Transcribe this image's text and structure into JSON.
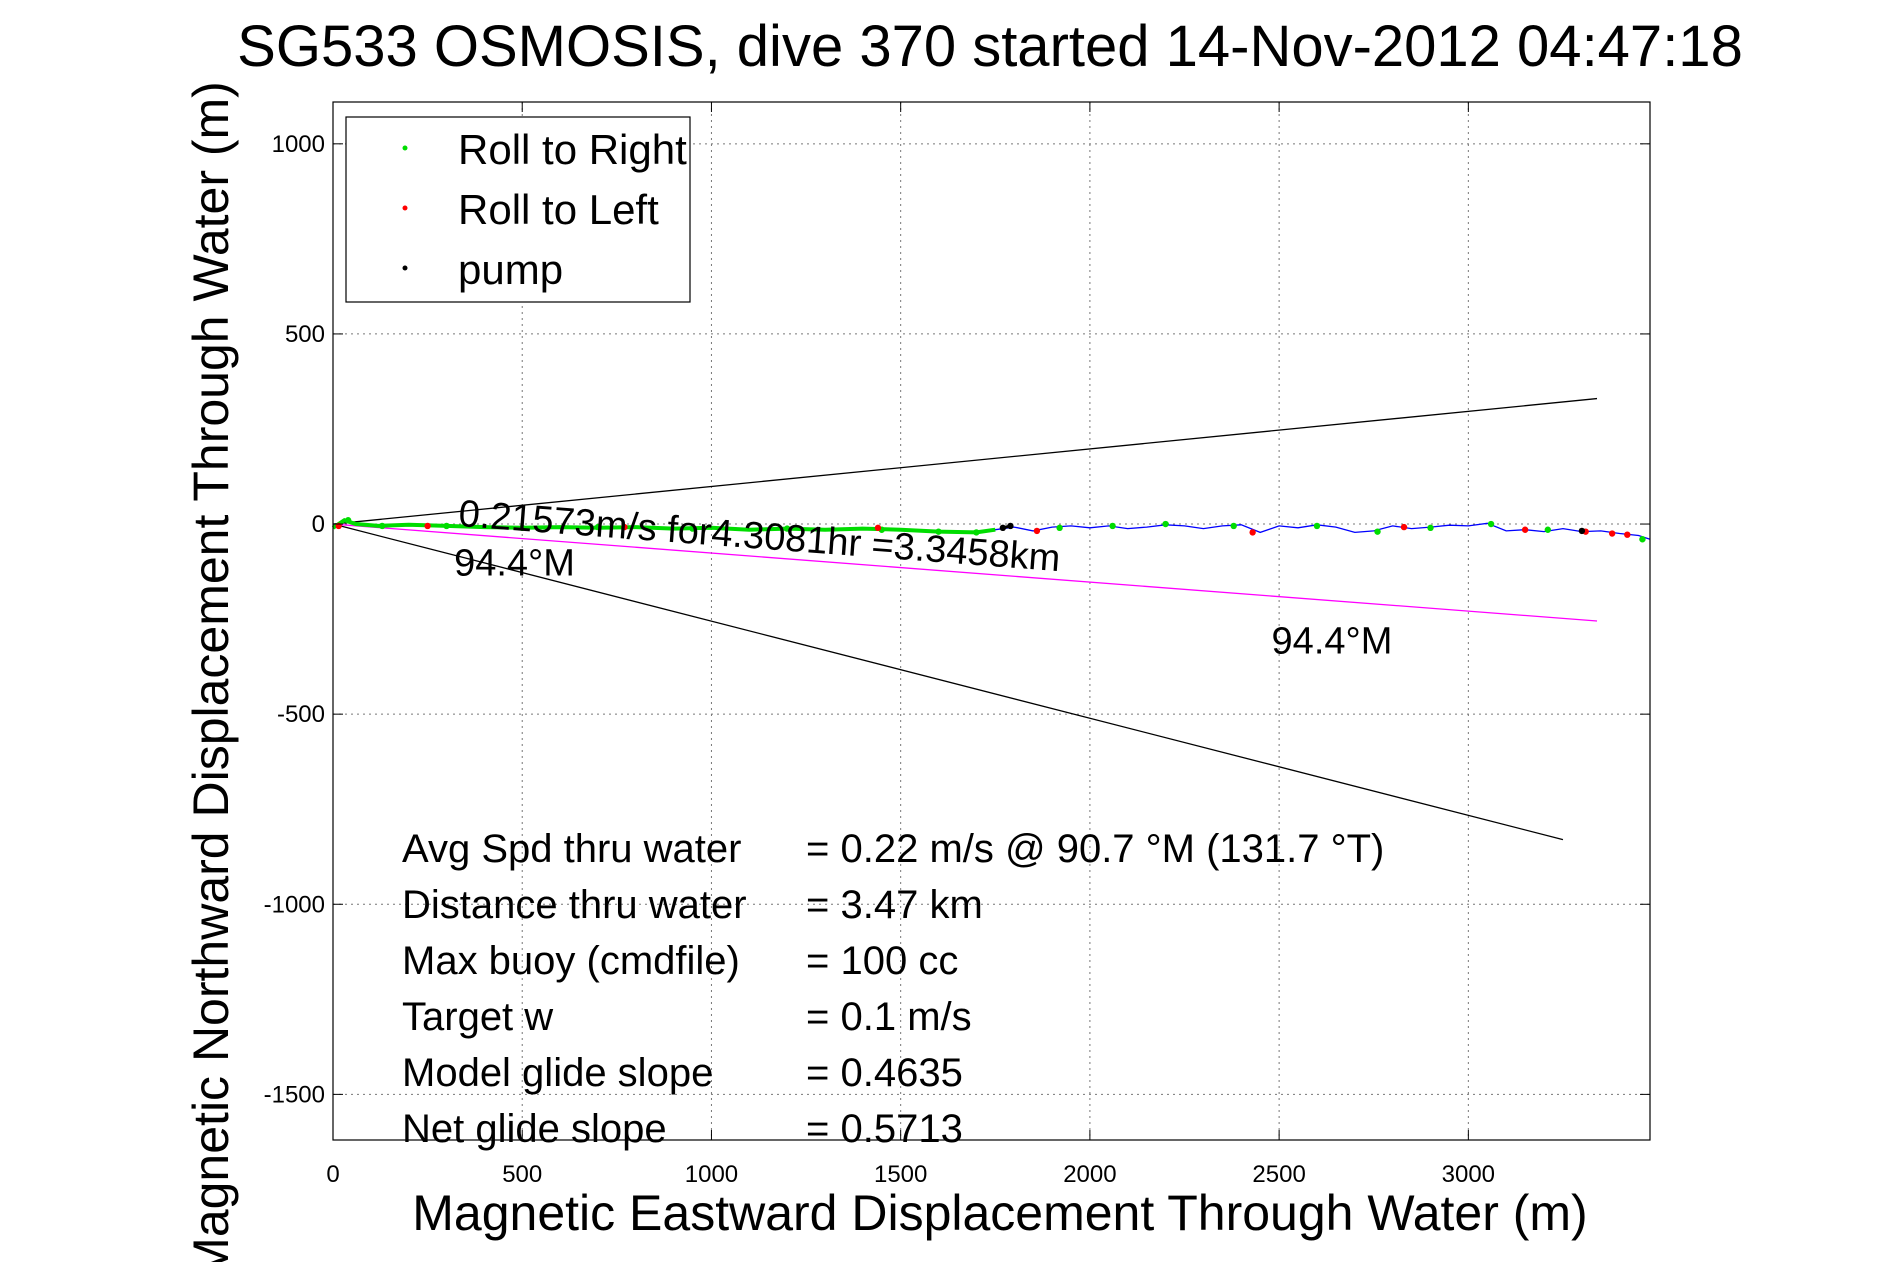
{
  "chart_data": {
    "type": "line",
    "title": "SG533 OSMOSIS, dive 370 started 14-Nov-2012 04:47:18",
    "xlabel": "Magnetic Eastward Displacement Through Water (m)",
    "ylabel": "Magnetic Northward Displacement Through Water (m)",
    "xlim": [
      0,
      3480
    ],
    "ylim": [
      -1620,
      1110
    ],
    "xticks": [
      0,
      500,
      1000,
      1500,
      2000,
      2500,
      3000
    ],
    "yticks": [
      1000,
      500,
      0,
      -500,
      -1000,
      -1500
    ],
    "grid": true,
    "legend_position": "top-left",
    "colors": {
      "roll_right": "#00dd00",
      "roll_left": "#ff0000",
      "pump": "#000000",
      "track": "#0000ff",
      "heading_line": "#ff00ff",
      "cone_lines": "#000000"
    },
    "legend": [
      {
        "label": "Roll to Right",
        "color": "#00dd00"
      },
      {
        "label": "Roll to Left",
        "color": "#ff0000"
      },
      {
        "label": "pump",
        "color": "#000000"
      }
    ],
    "series": [
      {
        "kind": "track",
        "x": [
          0,
          30,
          60,
          120,
          200,
          300,
          400,
          500,
          600,
          700,
          800,
          900,
          1000,
          1100,
          1200,
          1300,
          1400,
          1500,
          1600,
          1700,
          1750,
          1800,
          1850,
          1900,
          1950,
          2000,
          2050,
          2100,
          2150,
          2200,
          2250,
          2300,
          2350,
          2400,
          2450,
          2500,
          2550,
          2600,
          2650,
          2700,
          2750,
          2800,
          2850,
          2900,
          2950,
          3000,
          3050,
          3100,
          3150,
          3200,
          3250,
          3300,
          3350,
          3400,
          3450,
          3480
        ],
        "y": [
          -10,
          10,
          0,
          -5,
          -2,
          -5,
          -8,
          -10,
          -8,
          -10,
          -8,
          -12,
          -10,
          -15,
          -12,
          -15,
          -12,
          -15,
          -20,
          -22,
          -15,
          -8,
          -18,
          -8,
          -5,
          -10,
          -5,
          -12,
          -8,
          -2,
          -5,
          -12,
          -5,
          -2,
          -22,
          -5,
          -10,
          -2,
          -8,
          -22,
          -18,
          -5,
          -12,
          -8,
          -3,
          -5,
          2,
          -18,
          -15,
          -20,
          -12,
          -20,
          -18,
          -25,
          -30,
          -40
        ]
      }
    ],
    "markers": {
      "roll_right": {
        "x": [
          40,
          130,
          300,
          500,
          700,
          950,
          1200,
          1450,
          1600,
          1700,
          1920,
          2060,
          2200,
          2380,
          2600,
          2760,
          2900,
          3060,
          3210,
          3460
        ],
        "y": [
          10,
          -5,
          -5,
          -10,
          -8,
          -12,
          -12,
          -15,
          -20,
          -22,
          -10,
          -5,
          0,
          -5,
          -5,
          -20,
          -10,
          0,
          -15,
          -40
        ]
      },
      "roll_left": {
        "x": [
          15,
          250,
          770,
          1440,
          1860,
          2430,
          2830,
          3150,
          3310,
          3380,
          3420
        ],
        "y": [
          -5,
          -5,
          -8,
          -10,
          -18,
          -22,
          -8,
          -15,
          -20,
          -25,
          -28
        ]
      },
      "pump": {
        "x": [
          1770,
          1790,
          3300
        ],
        "y": [
          -10,
          -5,
          -18
        ]
      }
    },
    "reference_lines": [
      {
        "kind": "cone-upper",
        "x": [
          0,
          3340
        ],
        "y": [
          0,
          330
        ]
      },
      {
        "kind": "cone-lower",
        "x": [
          0,
          3250
        ],
        "y": [
          0,
          -830
        ]
      },
      {
        "kind": "heading",
        "x": [
          0,
          3340
        ],
        "y": [
          0,
          -255
        ]
      }
    ],
    "annotations": [
      {
        "text": "0.21573m/s for4.3081hr =3.3458km",
        "x": 330,
        "y": -5,
        "rotation": 4.3
      },
      {
        "text": "94.4°M",
        "x": 320,
        "y": -135
      },
      {
        "text": "94.4°M",
        "x": 2480,
        "y": -340
      }
    ],
    "stats": [
      {
        "label": "Avg Spd thru water",
        "value": "=  0.22 m/s @  90.7 °M (131.7 °T)"
      },
      {
        "label": "Distance thru water",
        "value": "=  3.47 km"
      },
      {
        "label": "Max buoy (cmdfile)",
        "value": "= 100 cc"
      },
      {
        "label": "Target w",
        "value": "= 0.1 m/s"
      },
      {
        "label": "Model glide slope",
        "value": "= 0.4635"
      },
      {
        "label": "Net glide slope",
        "value": "= 0.5713"
      }
    ]
  }
}
